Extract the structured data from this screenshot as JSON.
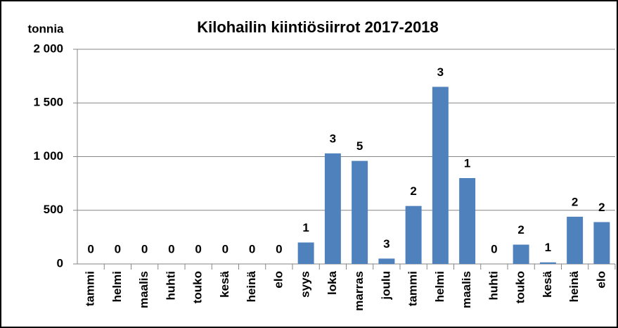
{
  "chart_data": {
    "type": "bar",
    "title": "Kilohailin kiintiösiirrot 2017-2018",
    "y_label": "tonnia",
    "categories": [
      "tammi",
      "helmi",
      "maalis",
      "huhti",
      "touko",
      "kesä",
      "heinä",
      "elo",
      "syys",
      "loka",
      "marras",
      "joulu",
      "tammi",
      "helmi",
      "maalis",
      "huhti",
      "touko",
      "kesä",
      "heinä",
      "elo"
    ],
    "values": [
      0,
      0,
      0,
      0,
      0,
      0,
      0,
      0,
      200,
      1030,
      960,
      50,
      540,
      1650,
      800,
      0,
      180,
      15,
      440,
      390
    ],
    "annotations": [
      0,
      0,
      0,
      0,
      0,
      0,
      0,
      0,
      1,
      3,
      5,
      3,
      2,
      3,
      1,
      0,
      2,
      1,
      2,
      2
    ],
    "color": "#4f81bd",
    "ylim": [
      0,
      2000
    ],
    "yticks": [
      0,
      500,
      {
        "value": 1000,
        "label": "1 000"
      },
      {
        "value": 1500,
        "label": "1 500"
      },
      {
        "value": 2000,
        "label": "2 000"
      }
    ],
    "grid": true
  }
}
